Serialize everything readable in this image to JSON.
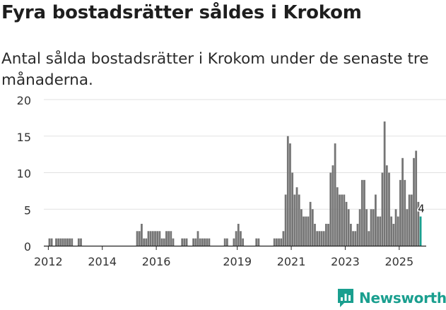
{
  "title": "Fyra bostadsrätter såldes i Krokom",
  "subtitle": "Antal sålda bostadsrätter i Krokom under de senaste tre månaderna.",
  "brand": {
    "name": "Newsworthy",
    "color": "#1a9f8f"
  },
  "chart_data": {
    "type": "bar",
    "title": "Fyra bostadsrätter såldes i Krokom",
    "xlabel": "",
    "ylabel": "",
    "ylim": [
      0,
      20
    ],
    "yticks": [
      "0",
      "5",
      "10",
      "15",
      "20"
    ],
    "xticks": [
      "2012",
      "2014",
      "2016",
      "2019",
      "2021",
      "2023",
      "2025"
    ],
    "x_start": "2011-11",
    "x_end": "2026-01",
    "bar_color": "#757575",
    "highlight_color": "#1a9f8f",
    "series": [
      {
        "name": "Sålda bostadsrätter",
        "points": [
          [
            "2012-01",
            1
          ],
          [
            "2012-02",
            1
          ],
          [
            "2012-04",
            1
          ],
          [
            "2012-05",
            1
          ],
          [
            "2012-06",
            1
          ],
          [
            "2012-07",
            1
          ],
          [
            "2012-08",
            1
          ],
          [
            "2012-09",
            1
          ],
          [
            "2012-10",
            1
          ],
          [
            "2012-11",
            1
          ],
          [
            "2013-02",
            1
          ],
          [
            "2013-03",
            1
          ],
          [
            "2015-04",
            2
          ],
          [
            "2015-05",
            2
          ],
          [
            "2015-06",
            3
          ],
          [
            "2015-07",
            1
          ],
          [
            "2015-08",
            1
          ],
          [
            "2015-09",
            2
          ],
          [
            "2015-10",
            2
          ],
          [
            "2015-11",
            2
          ],
          [
            "2015-12",
            2
          ],
          [
            "2016-01",
            2
          ],
          [
            "2016-02",
            2
          ],
          [
            "2016-03",
            1
          ],
          [
            "2016-04",
            1
          ],
          [
            "2016-05",
            2
          ],
          [
            "2016-06",
            2
          ],
          [
            "2016-07",
            2
          ],
          [
            "2016-08",
            1
          ],
          [
            "2016-12",
            1
          ],
          [
            "2017-01",
            1
          ],
          [
            "2017-02",
            1
          ],
          [
            "2017-05",
            1
          ],
          [
            "2017-06",
            1
          ],
          [
            "2017-07",
            2
          ],
          [
            "2017-08",
            1
          ],
          [
            "2017-09",
            1
          ],
          [
            "2017-10",
            1
          ],
          [
            "2017-11",
            1
          ],
          [
            "2017-12",
            1
          ],
          [
            "2018-07",
            1
          ],
          [
            "2018-08",
            1
          ],
          [
            "2018-11",
            1
          ],
          [
            "2018-12",
            2
          ],
          [
            "2019-01",
            3
          ],
          [
            "2019-02",
            2
          ],
          [
            "2019-03",
            1
          ],
          [
            "2019-09",
            1
          ],
          [
            "2019-10",
            1
          ],
          [
            "2020-05",
            1
          ],
          [
            "2020-06",
            1
          ],
          [
            "2020-07",
            1
          ],
          [
            "2020-08",
            1
          ],
          [
            "2020-09",
            2
          ],
          [
            "2020-10",
            7
          ],
          [
            "2020-11",
            15
          ],
          [
            "2020-12",
            14
          ],
          [
            "2021-01",
            10
          ],
          [
            "2021-02",
            7
          ],
          [
            "2021-03",
            8
          ],
          [
            "2021-04",
            7
          ],
          [
            "2021-05",
            5
          ],
          [
            "2021-06",
            4
          ],
          [
            "2021-07",
            4
          ],
          [
            "2021-08",
            4
          ],
          [
            "2021-09",
            6
          ],
          [
            "2021-10",
            5
          ],
          [
            "2021-11",
            3
          ],
          [
            "2021-12",
            2
          ],
          [
            "2022-01",
            2
          ],
          [
            "2022-02",
            2
          ],
          [
            "2022-03",
            2
          ],
          [
            "2022-04",
            3
          ],
          [
            "2022-05",
            3
          ],
          [
            "2022-06",
            10
          ],
          [
            "2022-07",
            11
          ],
          [
            "2022-08",
            14
          ],
          [
            "2022-09",
            8
          ],
          [
            "2022-10",
            7
          ],
          [
            "2022-11",
            7
          ],
          [
            "2022-12",
            7
          ],
          [
            "2023-01",
            6
          ],
          [
            "2023-02",
            5
          ],
          [
            "2023-03",
            3
          ],
          [
            "2023-04",
            2
          ],
          [
            "2023-05",
            2
          ],
          [
            "2023-06",
            3
          ],
          [
            "2023-07",
            5
          ],
          [
            "2023-08",
            9
          ],
          [
            "2023-09",
            9
          ],
          [
            "2023-10",
            5
          ],
          [
            "2023-11",
            2
          ],
          [
            "2023-12",
            5
          ],
          [
            "2024-01",
            5
          ],
          [
            "2024-02",
            7
          ],
          [
            "2024-03",
            4
          ],
          [
            "2024-04",
            4
          ],
          [
            "2024-05",
            10
          ],
          [
            "2024-06",
            17
          ],
          [
            "2024-07",
            11
          ],
          [
            "2024-08",
            10
          ],
          [
            "2024-09",
            4
          ],
          [
            "2024-10",
            3
          ],
          [
            "2024-11",
            5
          ],
          [
            "2024-12",
            4
          ],
          [
            "2025-01",
            9
          ],
          [
            "2025-02",
            12
          ],
          [
            "2025-03",
            9
          ],
          [
            "2025-04",
            5
          ],
          [
            "2025-05",
            7
          ],
          [
            "2025-06",
            7
          ],
          [
            "2025-07",
            12
          ],
          [
            "2025-08",
            13
          ],
          [
            "2025-09",
            6
          ],
          [
            "2025-10",
            4
          ]
        ]
      }
    ],
    "annotation": {
      "point": "2025-10",
      "label": "4"
    }
  }
}
